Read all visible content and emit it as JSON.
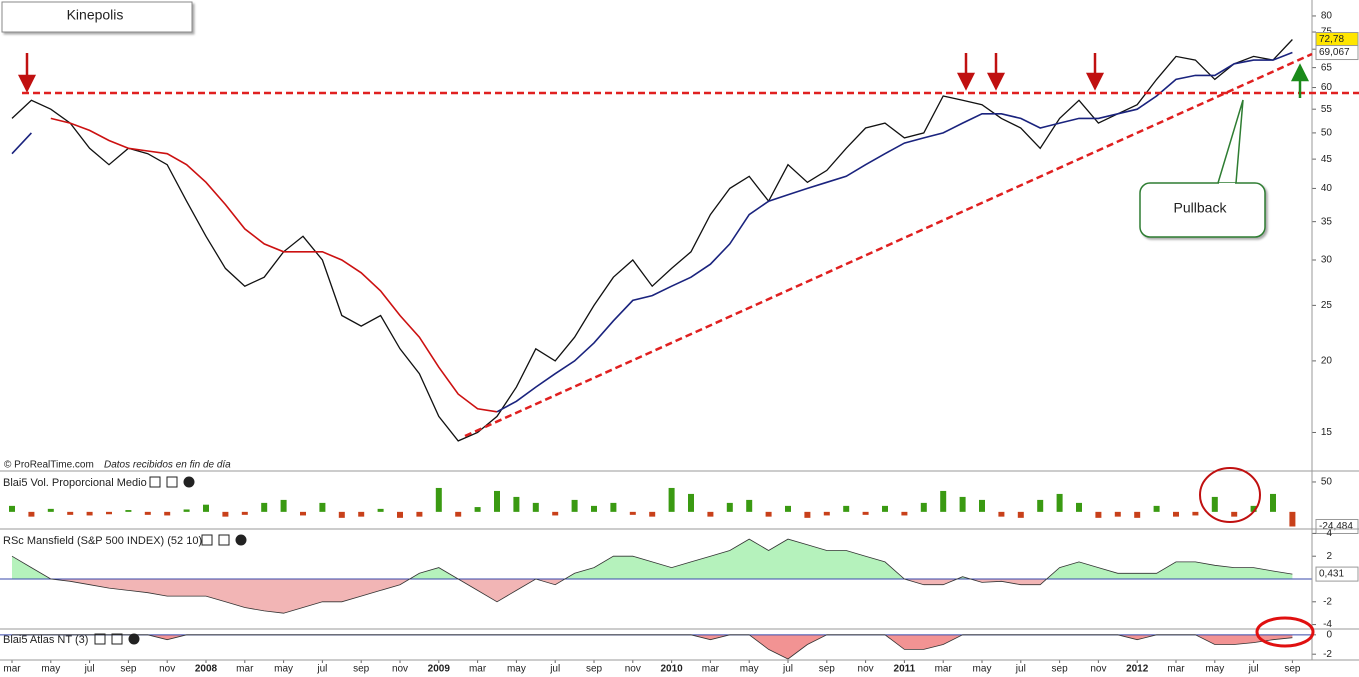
{
  "chart_data": [
    {
      "type": "line",
      "log": true,
      "title": "Kinepolis",
      "annotations": [
        "© ProRealTime.com",
        "Datos recibidos en fin de día",
        "Pullback"
      ],
      "categories": [
        "mar",
        null,
        "may",
        null,
        "jul",
        null,
        "sep",
        null,
        "nov",
        null,
        "2008",
        null,
        "mar",
        null,
        "may",
        null,
        "jul",
        null,
        "sep",
        null,
        "nov",
        null,
        "2009",
        null,
        "mar",
        null,
        "may",
        null,
        "jul",
        null,
        "sep",
        null,
        "nov",
        null,
        "2010",
        null,
        "mar",
        null,
        "may",
        null,
        "jul",
        null,
        "sep",
        null,
        "nov",
        null,
        "2011",
        null,
        "mar",
        null,
        "may",
        null,
        "jul",
        null,
        "sep",
        null,
        "nov",
        null,
        "2012",
        null,
        "mar",
        null,
        "may",
        null,
        "jul",
        null,
        "sep"
      ],
      "ylim": [
        12.9,
        85.3
      ],
      "yticks": [
        15,
        20,
        25,
        30,
        35,
        40,
        45,
        50,
        55,
        60,
        65,
        70,
        75,
        80
      ],
      "series": [
        {
          "color": "#111111",
          "last_label": "72,78",
          "values": [
            53,
            57,
            55,
            52,
            47,
            44,
            47,
            46,
            44,
            38,
            33,
            29,
            27,
            28,
            31,
            33,
            30,
            24,
            23,
            24,
            21,
            19,
            16,
            14.5,
            15,
            16,
            18,
            21,
            20,
            22,
            25,
            28,
            30,
            27,
            29,
            31,
            36,
            40,
            42,
            38,
            44,
            41,
            43,
            47,
            51,
            52,
            49,
            50,
            58,
            57,
            56,
            53,
            51,
            47,
            53,
            57,
            52,
            54,
            56,
            62,
            68,
            67,
            62,
            66,
            68,
            67,
            72.78
          ]
        },
        {
          "color": "#cc1111",
          "values": [
            null,
            null,
            53,
            52,
            50.5,
            48.5,
            47,
            46.5,
            46,
            44,
            41,
            37.5,
            34,
            32,
            31,
            31,
            31,
            30,
            28.5,
            26.5,
            24,
            22,
            19.5,
            17.5,
            16.5,
            16.3,
            null,
            null,
            null,
            null,
            null,
            null,
            null,
            null,
            null,
            null,
            null,
            null,
            null,
            null,
            null,
            null,
            null,
            null,
            null,
            null,
            null,
            null,
            null,
            null,
            null,
            null,
            null,
            null,
            null,
            null,
            null,
            null,
            null,
            null,
            null,
            null,
            null,
            null,
            null,
            null,
            null
          ]
        },
        {
          "color": "#1a237e",
          "last_label": "69,067",
          "values": [
            46,
            50,
            null,
            null,
            null,
            null,
            null,
            null,
            null,
            null,
            null,
            null,
            null,
            null,
            null,
            null,
            null,
            null,
            null,
            null,
            null,
            null,
            null,
            null,
            null,
            16.3,
            17,
            18,
            19,
            20,
            21.5,
            23.5,
            25.5,
            26,
            27,
            28,
            29.5,
            32,
            36,
            38,
            39,
            40,
            41,
            42,
            44,
            46,
            48,
            49,
            50,
            52,
            54,
            54,
            53,
            51,
            52,
            53,
            53,
            54,
            55,
            58,
            62,
            63,
            63,
            66,
            67,
            67,
            69.067
          ]
        }
      ]
    },
    {
      "type": "bar",
      "title": "Blai5 Vol. Proporcional Medio",
      "ylim": [
        -27,
        65
      ],
      "yticks": [
        50
      ],
      "color": "#3a9a12",
      "negative_color": "#c8401a",
      "last_label": "-24,484",
      "values": [
        10,
        -8,
        5,
        -5,
        -6,
        -4,
        3,
        -5,
        -6,
        4,
        12,
        -8,
        -5,
        15,
        20,
        -6,
        15,
        -10,
        -8,
        5,
        -10,
        -8,
        40,
        -8,
        8,
        35,
        25,
        15,
        -6,
        20,
        10,
        15,
        -5,
        -8,
        40,
        30,
        -8,
        15,
        20,
        -8,
        10,
        -10,
        -6,
        10,
        -5,
        10,
        -6,
        15,
        35,
        25,
        20,
        -8,
        -10,
        20,
        30,
        15,
        -10,
        -8,
        -10,
        10,
        -8,
        -6,
        25,
        -8,
        10,
        30,
        -24.484
      ]
    },
    {
      "type": "area",
      "title": "RSc Mansfield (S&P 500 INDEX) (52 10)",
      "ylim": [
        -4.3,
        4.3
      ],
      "yticks": [
        4,
        2,
        -2,
        -4
      ],
      "color": "#a8f0b0",
      "negative_color": "#f0a8a8",
      "last_label": "0,431",
      "values": [
        2,
        1,
        0,
        -0.2,
        -0.5,
        -0.8,
        -1,
        -1.2,
        -1.5,
        -1.5,
        -1.5,
        -2,
        -2.5,
        -2.8,
        -3,
        -2.5,
        -2,
        -2,
        -1.5,
        -1,
        -0.5,
        0.5,
        1,
        0,
        -1,
        -2,
        -1,
        0,
        -0.5,
        0.5,
        1,
        2,
        2,
        1.5,
        1,
        1.5,
        2,
        2.5,
        3.5,
        2.5,
        3.5,
        3,
        2.5,
        2.5,
        2,
        1.5,
        0,
        -0.5,
        -0.5,
        0.2,
        -0.3,
        -0.2,
        -0.5,
        -0.5,
        1,
        1.5,
        1,
        0.5,
        0.5,
        0.5,
        1.5,
        1.5,
        1.2,
        1,
        1,
        0.7,
        0.431
      ]
    },
    {
      "type": "area",
      "title": "Blai5 Atlas NT (3)",
      "ylim": [
        -2.6,
        0.5
      ],
      "yticks": [
        0,
        -2
      ],
      "color": "#a8f0b0",
      "negative_color": "#f08080",
      "values": [
        0,
        0,
        0,
        0,
        0,
        0,
        0,
        0,
        -0.5,
        0,
        0,
        0,
        0,
        0,
        0,
        0,
        0,
        0,
        0,
        0,
        0,
        0,
        0,
        0,
        0,
        0,
        0,
        0,
        0,
        0,
        0,
        0,
        0,
        0,
        0,
        0,
        -0.5,
        0,
        0,
        -1.5,
        -2.5,
        -1,
        0,
        0,
        0,
        0,
        -1.5,
        -1.5,
        -1,
        0,
        0,
        0,
        0,
        0,
        0,
        0,
        0,
        0,
        -0.5,
        0,
        0,
        0,
        -1,
        -1,
        -0.8,
        -0.5,
        -0.3
      ]
    }
  ]
}
